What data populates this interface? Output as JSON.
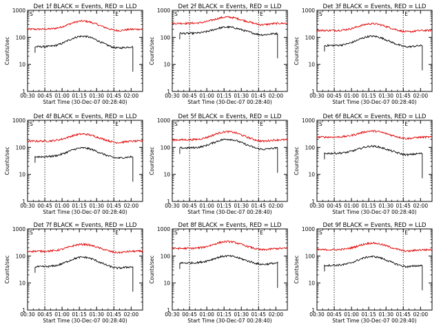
{
  "chart_data": [
    {
      "type": "line",
      "title": "Det 1f BLACK = Events, RED = LLD",
      "xlabel": "Start Time (30-Dec-07 00:28:40)",
      "ylabel": "Counts/sec",
      "y_scale": "log",
      "ylim": [
        1,
        1000
      ],
      "xlim_minutes": [
        0,
        100
      ],
      "xticks": [
        "00:30",
        "00:45",
        "01:00",
        "01:15",
        "01:30",
        "01:45",
        "02:00"
      ],
      "yticks": [
        "1",
        "10",
        "100",
        "1000"
      ],
      "markers": [
        {
          "time": "00:45",
          "label": "S"
        },
        {
          "time": "01:45",
          "label": "E"
        }
      ],
      "series": [
        {
          "color": "#e00000",
          "base": 200,
          "peak": 400
        },
        {
          "color": "#000000",
          "base": 45,
          "peak": 110
        }
      ]
    },
    {
      "type": "line",
      "title": "Det 2f BLACK = Events, RED = LLD",
      "xlabel": "Start Time (30-Dec-07 00:28:40)",
      "ylabel": "Counts/sec",
      "y_scale": "log",
      "ylim": [
        1,
        1000
      ],
      "xlim_minutes": [
        0,
        100
      ],
      "xticks": [
        "00:30",
        "00:45",
        "01:00",
        "01:15",
        "01:30",
        "01:45",
        "02:00"
      ],
      "yticks": [
        "1",
        "10",
        "100",
        "1000"
      ],
      "markers": [
        {
          "time": "00:45",
          "label": "S"
        },
        {
          "time": "01:45",
          "label": "E"
        }
      ],
      "series": [
        {
          "color": "#e00000",
          "base": 330,
          "peak": 560
        },
        {
          "color": "#000000",
          "base": 140,
          "peak": 240
        }
      ]
    },
    {
      "type": "line",
      "title": "Det 3f BLACK = Events, RED = LLD",
      "xlabel": "Start Time (30-Dec-07 00:28:40)",
      "ylabel": "Counts/sec",
      "y_scale": "log",
      "ylim": [
        1,
        1000
      ],
      "xlim_minutes": [
        0,
        100
      ],
      "xticks": [
        "00:30",
        "00:45",
        "01:00",
        "01:15",
        "01:30",
        "01:45",
        "02:00"
      ],
      "yticks": [
        "1",
        "10",
        "100",
        "1000"
      ],
      "markers": [
        {
          "time": "00:45",
          "label": "S"
        },
        {
          "time": "01:45",
          "label": "E"
        }
      ],
      "series": [
        {
          "color": "#e00000",
          "base": 180,
          "peak": 320
        },
        {
          "color": "#000000",
          "base": 50,
          "peak": 110
        }
      ]
    },
    {
      "type": "line",
      "title": "Det 4f BLACK = Events, RED = LLD",
      "xlabel": "Start Time (30-Dec-07 00:28:40)",
      "ylabel": "Counts/sec",
      "y_scale": "log",
      "ylim": [
        1,
        1000
      ],
      "xlim_minutes": [
        0,
        100
      ],
      "xticks": [
        "00:30",
        "00:45",
        "01:00",
        "01:15",
        "01:30",
        "01:45",
        "02:00"
      ],
      "yticks": [
        "1",
        "10",
        "100",
        "1000"
      ],
      "markers": [
        {
          "time": "00:45",
          "label": "S"
        },
        {
          "time": "01:45",
          "label": "E"
        }
      ],
      "series": [
        {
          "color": "#e00000",
          "base": 170,
          "peak": 310
        },
        {
          "color": "#000000",
          "base": 45,
          "peak": 95
        }
      ]
    },
    {
      "type": "line",
      "title": "Det 5f BLACK = Events, RED = LLD",
      "xlabel": "Start Time (30-Dec-07 00:28:40)",
      "ylabel": "Counts/sec",
      "y_scale": "log",
      "ylim": [
        1,
        1000
      ],
      "xlim_minutes": [
        0,
        100
      ],
      "xticks": [
        "00:30",
        "00:45",
        "01:00",
        "01:15",
        "01:30",
        "01:45",
        "02:00"
      ],
      "yticks": [
        "1",
        "10",
        "100",
        "1000"
      ],
      "markers": [
        {
          "time": "00:45",
          "label": "S"
        },
        {
          "time": "01:45",
          "label": "E"
        }
      ],
      "series": [
        {
          "color": "#e00000",
          "base": 190,
          "peak": 380
        },
        {
          "color": "#000000",
          "base": 95,
          "peak": 200
        }
      ]
    },
    {
      "type": "line",
      "title": "Det 6f BLACK = Events, RED = LLD",
      "xlabel": "Start Time (30-Dec-07 00:28:40)",
      "ylabel": "Counts/sec",
      "y_scale": "log",
      "ylim": [
        1,
        1000
      ],
      "xlim_minutes": [
        0,
        100
      ],
      "xticks": [
        "00:30",
        "00:45",
        "01:00",
        "01:15",
        "01:30",
        "01:45",
        "02:00"
      ],
      "yticks": [
        "1",
        "10",
        "100",
        "1000"
      ],
      "markers": [
        {
          "time": "00:45",
          "label": "S"
        },
        {
          "time": "01:45",
          "label": "E"
        }
      ],
      "series": [
        {
          "color": "#e00000",
          "base": 240,
          "peak": 400
        },
        {
          "color": "#000000",
          "base": 60,
          "peak": 110
        }
      ]
    },
    {
      "type": "line",
      "title": "Det 7f BLACK = Events, RED = LLD",
      "xlabel": "Start Time (30-Dec-07 00:28:40)",
      "ylabel": "Counts/sec",
      "y_scale": "log",
      "ylim": [
        1,
        1000
      ],
      "xlim_minutes": [
        0,
        100
      ],
      "xticks": [
        "00:30",
        "00:45",
        "01:00",
        "01:15",
        "01:30",
        "01:45",
        "02:00"
      ],
      "yticks": [
        "1",
        "10",
        "100",
        "1000"
      ],
      "markers": [
        {
          "time": "00:45",
          "label": "S"
        },
        {
          "time": "01:45",
          "label": "E"
        }
      ],
      "series": [
        {
          "color": "#e00000",
          "base": 150,
          "peak": 270
        },
        {
          "color": "#000000",
          "base": 40,
          "peak": 90
        }
      ]
    },
    {
      "type": "line",
      "title": "Det 8f BLACK = Events, RED = LLD",
      "xlabel": "Start Time (30-Dec-07 00:28:40)",
      "ylabel": "Counts/sec",
      "y_scale": "log",
      "ylim": [
        1,
        1000
      ],
      "xlim_minutes": [
        0,
        100
      ],
      "xticks": [
        "00:30",
        "00:45",
        "01:00",
        "01:15",
        "01:30",
        "01:45",
        "02:00"
      ],
      "yticks": [
        "1",
        "10",
        "100",
        "1000"
      ],
      "markers": [
        {
          "time": "00:45",
          "label": "S"
        },
        {
          "time": "01:45",
          "label": "E"
        }
      ],
      "series": [
        {
          "color": "#e00000",
          "base": 190,
          "peak": 340
        },
        {
          "color": "#000000",
          "base": 55,
          "peak": 100
        }
      ]
    },
    {
      "type": "line",
      "title": "Det 9f BLACK = Events, RED = LLD",
      "xlabel": "Start Time (30-Dec-07 00:28:40)",
      "ylabel": "Counts/sec",
      "y_scale": "log",
      "ylim": [
        1,
        1000
      ],
      "xlim_minutes": [
        0,
        100
      ],
      "xticks": [
        "00:30",
        "00:45",
        "01:00",
        "01:15",
        "01:30",
        "01:45",
        "02:00"
      ],
      "yticks": [
        "1",
        "10",
        "100",
        "1000"
      ],
      "markers": [
        {
          "time": "00:45",
          "label": "S"
        },
        {
          "time": "01:45",
          "label": "E"
        }
      ],
      "series": [
        {
          "color": "#e00000",
          "base": 170,
          "peak": 300
        },
        {
          "color": "#000000",
          "base": 45,
          "peak": 95
        }
      ]
    }
  ]
}
